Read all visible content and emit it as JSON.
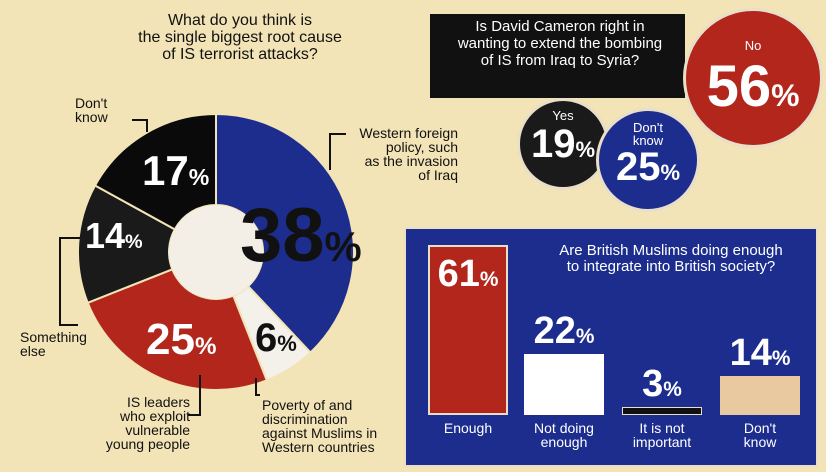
{
  "q1": {
    "title_lines": [
      "What do you think is",
      "the single biggest root cause",
      "of IS terrorist attacks?"
    ],
    "callouts": {
      "dont_know": [
        "Don't",
        "know"
      ],
      "western": [
        "Western foreign",
        "policy, such",
        "as the invasion",
        "of Iraq"
      ],
      "something_else": [
        "Something",
        "else"
      ],
      "is_leaders": [
        "IS leaders",
        "who exploit",
        "vulnerable",
        "young people"
      ],
      "poverty": [
        "Poverty of and",
        "discrimination",
        "against Muslims in",
        "Western countries"
      ]
    },
    "pct_labels": {
      "western": "38",
      "dont_know": "17",
      "something_else": "14",
      "is_leaders": "25",
      "poverty": "6",
      "symbol": "%"
    }
  },
  "q2": {
    "title_lines": [
      "Is David Cameron right in",
      "wanting to extend the bombing",
      "of IS from Iraq to Syria?"
    ],
    "yes_label": "Yes",
    "yes_value": "19",
    "dontknow_lines": [
      "Don't",
      "know"
    ],
    "dontknow_value": "25",
    "no_label": "No",
    "no_value": "56",
    "symbol": "%"
  },
  "q3": {
    "title_lines": [
      "Are British Muslims doing enough",
      "to integrate into British society?"
    ],
    "bars": [
      {
        "label_lines": [
          "Enough"
        ],
        "value": "61",
        "color": "#b3261c"
      },
      {
        "label_lines": [
          "Not doing",
          "enough"
        ],
        "value": "22",
        "color": "#ffffff"
      },
      {
        "label_lines": [
          "It is not",
          "important"
        ],
        "value": "3",
        "color": "#111111"
      },
      {
        "label_lines": [
          "Don't",
          "know"
        ],
        "value": "14",
        "color": "#e8c9a0"
      }
    ],
    "symbol": "%"
  },
  "chart_data": [
    {
      "type": "pie",
      "title": "What do you think is the single biggest root cause of IS terrorist attacks?",
      "categories": [
        "Western foreign policy, such as the invasion of Iraq",
        "Poverty of and discrimination against Muslims in Western countries",
        "IS leaders who exploit vulnerable young people",
        "Something else",
        "Don't know"
      ],
      "values": [
        38,
        6,
        25,
        14,
        17
      ],
      "colors": [
        "#1c2d8e",
        "#f4f0ea",
        "#b3261c",
        "#1a1a1a",
        "#0a0a0a"
      ],
      "donut": true
    },
    {
      "type": "bubble",
      "title": "Is David Cameron right in wanting to extend the bombing of IS from Iraq to Syria?",
      "categories": [
        "Yes",
        "Don't know",
        "No"
      ],
      "values": [
        19,
        25,
        56
      ],
      "colors": [
        "#1a1a1a",
        "#1c2d8e",
        "#b3261c"
      ]
    },
    {
      "type": "bar",
      "title": "Are British Muslims doing enough to integrate into British society?",
      "categories": [
        "Enough",
        "Not doing enough",
        "It is not important",
        "Don't know"
      ],
      "values": [
        61,
        22,
        3,
        14
      ],
      "colors": [
        "#b3261c",
        "#ffffff",
        "#111111",
        "#e8c9a0"
      ]
    }
  ]
}
